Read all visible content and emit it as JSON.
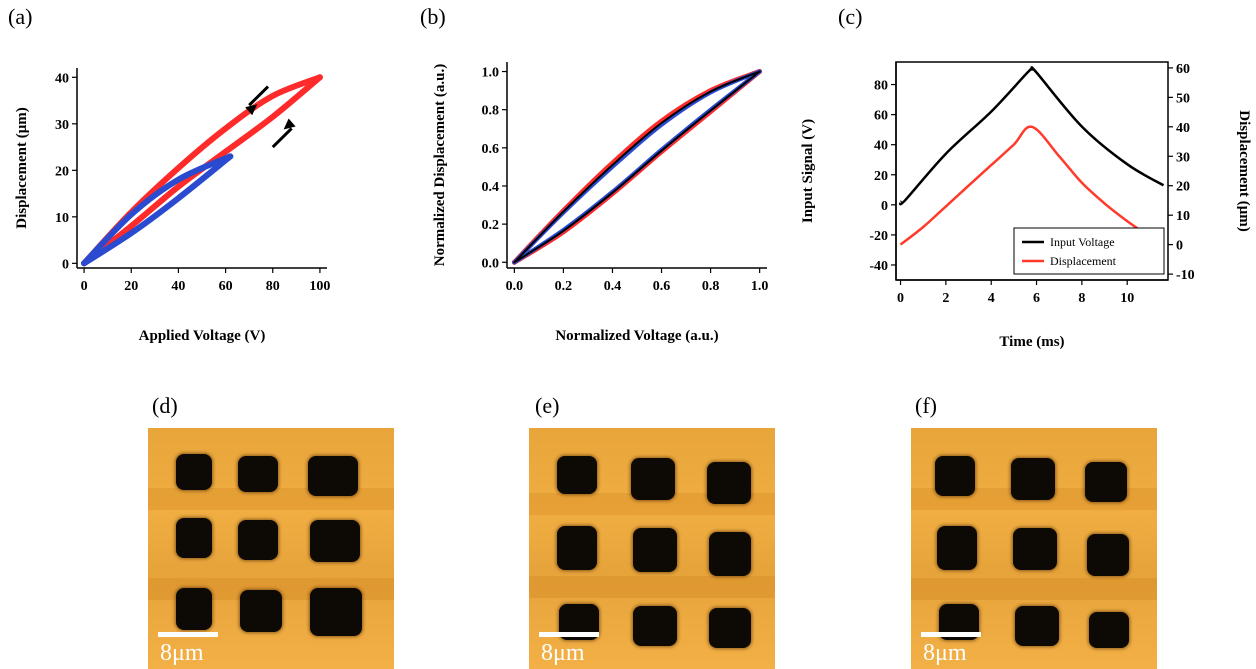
{
  "chart_data": [
    {
      "panel": "(a)",
      "type": "line",
      "xlabel": "Applied Voltage (V)",
      "ylabel": "Displacement (μm)",
      "xlim": [
        -3,
        103
      ],
      "ylim": [
        -1,
        42
      ],
      "xticks": [
        "0",
        "20",
        "40",
        "60",
        "80",
        "100"
      ],
      "yticks": [
        "0",
        "10",
        "20",
        "30",
        "40"
      ],
      "series": [
        {
          "color": "#ff2a2a",
          "loop_up_x": [
            0,
            20,
            40,
            60,
            80,
            100
          ],
          "loop_up_y": [
            0,
            8,
            16.5,
            24,
            31.5,
            40
          ],
          "loop_down_x": [
            100,
            80,
            60,
            40,
            20,
            0
          ],
          "loop_down_y": [
            40,
            36,
            29,
            20.5,
            11,
            0
          ]
        },
        {
          "color": "#2a4bd0",
          "loop_up_x": [
            0,
            20,
            40,
            62
          ],
          "loop_up_y": [
            0,
            6.5,
            14,
            23
          ],
          "loop_down_x": [
            62,
            40,
            20,
            0
          ],
          "loop_down_y": [
            23,
            18,
            10.5,
            0
          ]
        }
      ]
    },
    {
      "panel": "(b)",
      "type": "line",
      "xlabel": "Normalized Voltage (a.u.)",
      "ylabel": "Normalized Displacement (a.u.)",
      "xlim": [
        -0.03,
        1.03
      ],
      "ylim": [
        -0.03,
        1.05
      ],
      "xticks": [
        "0.0",
        "0.2",
        "0.4",
        "0.6",
        "0.8",
        "1.0"
      ],
      "yticks": [
        "0.0",
        "0.2",
        "0.4",
        "0.6",
        "0.8",
        "1.0"
      ],
      "series": [
        {
          "color": "#ff2a2a",
          "x": [
            0,
            0.2,
            0.4,
            0.6,
            0.8,
            1.0
          ],
          "up": [
            0,
            0.16,
            0.36,
            0.58,
            0.79,
            1.0
          ],
          "down": [
            0,
            0.27,
            0.52,
            0.74,
            0.9,
            1.0
          ]
        },
        {
          "color": "#2a4bd0",
          "x": [
            0,
            0.2,
            0.4,
            0.6,
            0.8,
            1.0
          ],
          "up": [
            0,
            0.17,
            0.37,
            0.59,
            0.8,
            1.0
          ],
          "down": [
            0,
            0.26,
            0.5,
            0.72,
            0.89,
            1.0
          ]
        },
        {
          "color": "#000000",
          "x": [
            0,
            0.2,
            0.4,
            0.6,
            0.8,
            1.0
          ],
          "up": [
            0,
            0.165,
            0.365,
            0.585,
            0.795,
            1.0
          ],
          "down": [
            0,
            0.265,
            0.51,
            0.73,
            0.895,
            1.0
          ]
        }
      ]
    },
    {
      "panel": "(c)",
      "type": "line",
      "xlabel": "Time (ms)",
      "ylabel": "Input Signal (V)",
      "ylabel_right": "Displacement (μm)",
      "xlim": [
        -0.2,
        11.8
      ],
      "ylim": [
        -50,
        95
      ],
      "ylim_right": [
        -12,
        62
      ],
      "xticks": [
        "0",
        "2",
        "4",
        "6",
        "8",
        "10"
      ],
      "yticks": [
        "-40",
        "-20",
        "0",
        "20",
        "40",
        "60",
        "80"
      ],
      "yticks_right": [
        "-10",
        "0",
        "10",
        "20",
        "30",
        "40",
        "50",
        "60"
      ],
      "legend": "bottom-right",
      "series": [
        {
          "name": "Input Voltage",
          "color": "#000000",
          "axis": "left",
          "x": [
            0,
            0.2,
            2,
            4,
            5.6,
            5.8,
            6,
            8,
            10,
            11.6
          ],
          "y": [
            2,
            3,
            34,
            62,
            88,
            90,
            88,
            52,
            27,
            13
          ]
        },
        {
          "name": "Displacement",
          "color": "#ff3a2a",
          "axis": "right",
          "x": [
            0,
            1,
            2,
            3,
            4,
            5,
            5.8,
            7,
            8,
            9,
            10,
            11.5
          ],
          "y": [
            0,
            6,
            13,
            20,
            27,
            34,
            40,
            30,
            21,
            14,
            8,
            0
          ]
        }
      ]
    }
  ],
  "afm_panels": [
    {
      "label": "(d)",
      "scale_text": "8μm"
    },
    {
      "label": "(e)",
      "scale_text": "8μm"
    },
    {
      "label": "(f)",
      "scale_text": "8μm"
    }
  ]
}
